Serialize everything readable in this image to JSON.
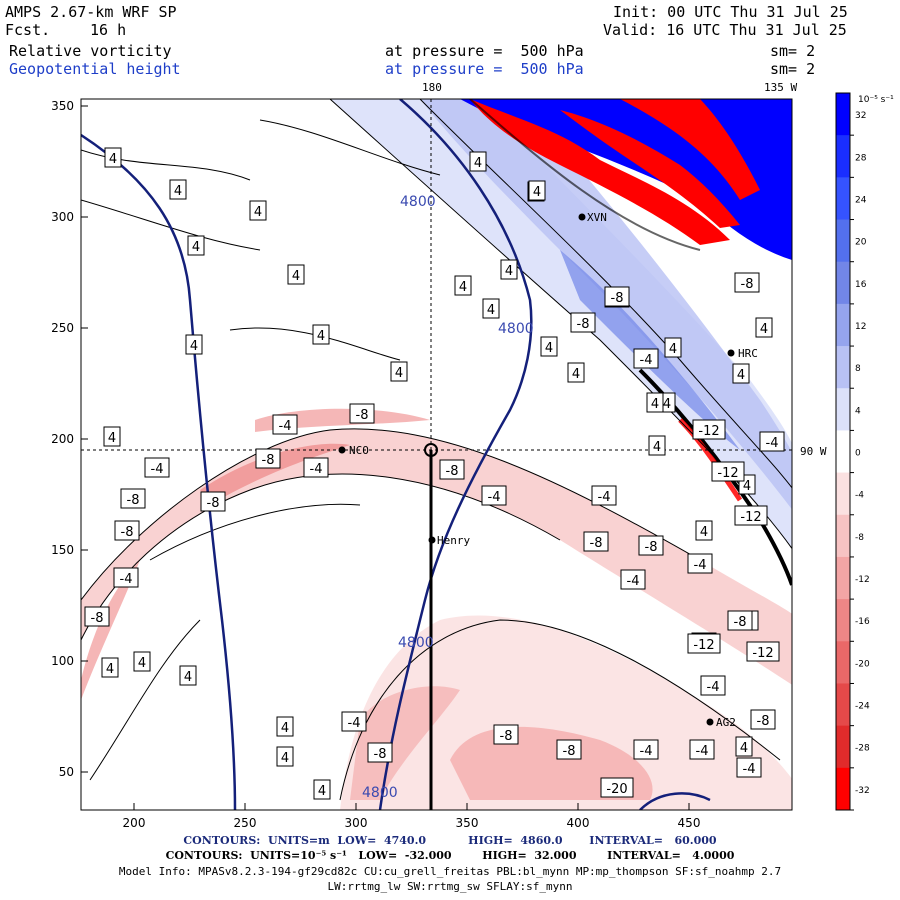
{
  "header": {
    "model": "AMPS 2.67-km WRF SP",
    "fcst_label": "Fcst.",
    "fcst_value": "16 h",
    "init": "Init: 00 UTC Thu 31 Jul 25",
    "valid": "Valid: 16 UTC Thu 31 Jul 25",
    "field1_name": "Relative vorticity",
    "field1_pressure": "at pressure =  500 hPa",
    "field1_sm": "sm= 2",
    "field2_name": "Geopotential height",
    "field2_pressure": "at pressure =  500 hPa",
    "field2_sm": "sm= 2"
  },
  "map_labels": {
    "lon_180": "180",
    "lon_135w": "135 W",
    "lon_90w": "90 W"
  },
  "axes": {
    "x_ticks": [
      "200",
      "250",
      "300",
      "350",
      "400",
      "450"
    ],
    "y_ticks": [
      "350",
      "300",
      "250",
      "200",
      "150",
      "100",
      "50"
    ]
  },
  "stations": [
    {
      "id": "NCO",
      "label": "NCO"
    },
    {
      "id": "henry",
      "label": "Henry"
    },
    {
      "id": "hrc",
      "label": "HRC"
    },
    {
      "id": "xvn",
      "label": "XVN"
    },
    {
      "id": "ag2",
      "label": "AG2"
    }
  ],
  "height_contour_labels": [
    "4800",
    "4800",
    "4800",
    "4800"
  ],
  "vorticity_contour_labels": [
    "4",
    "4",
    "4",
    "4",
    "4",
    "4",
    "4",
    "4",
    "4",
    "4",
    "4",
    "4",
    "4",
    "4",
    "4",
    "4",
    "4",
    "4",
    "4",
    "4",
    "4",
    "4",
    "4",
    "4",
    "4",
    "4",
    "4",
    "4",
    "4",
    "4",
    "4",
    "4",
    "-4",
    "-4",
    "-4",
    "-4",
    "-4",
    "-4",
    "-4",
    "-4",
    "-4",
    "-4",
    "-4",
    "-4",
    "-4",
    "-4",
    "-4",
    "-4",
    "-4",
    "-8",
    "-8",
    "-8",
    "-8",
    "-8",
    "-8",
    "-8",
    "-8",
    "-8",
    "-8",
    "-8",
    "-8",
    "-8",
    "-8",
    "-8",
    "-8",
    "-8",
    "-8",
    "-8",
    "-12",
    "-12",
    "-12",
    "-12",
    "-20",
    "-12"
  ],
  "colorbar": {
    "unit": "10⁻⁵ s⁻¹",
    "labels": [
      "32",
      "28",
      "24",
      "20",
      "16",
      "12",
      "8",
      "4",
      "0",
      "-4",
      "-8",
      "-12",
      "-16",
      "-20",
      "-24",
      "-28",
      "-32"
    ],
    "colors": [
      "#0000ff",
      "#1a2eff",
      "#3553ff",
      "#5370ee",
      "#7286e8",
      "#95a4ee",
      "#b8c1f4",
      "#dce1fa",
      "#ffffff",
      "#fbe1e1",
      "#f7c3c3",
      "#f3a5a5",
      "#ee8686",
      "#ea6868",
      "#e54949",
      "#e12b2b",
      "#ff0000"
    ]
  },
  "footer": {
    "line1": "CONTOURS:  UNITS=m  LOW=  4740.0           HIGH=  4860.0       INTERVAL=   60.000",
    "line2": "CONTOURS:  UNITS=10⁻⁵ s⁻¹   LOW=  -32.000        HIGH=  32.000        INTERVAL=   4.0000",
    "line3": "Model Info: MPASv8.2.3-194-gf29cd82c CU:cu_grell_freitas PBL:bl_mynn MP:mp_thompson SF:sf_noahmp 2.7",
    "line4": "LW:rrtmg_lw SW:rrtmg_sw SFLAY:sf_mynn"
  }
}
